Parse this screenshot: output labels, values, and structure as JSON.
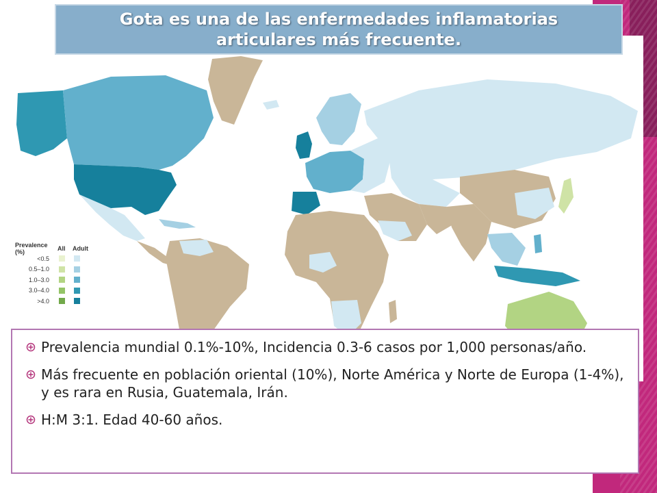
{
  "slide": {
    "title": "Gota es una de las enfermedades inflamatorias articulares más frecuente."
  },
  "legend": {
    "title": "Prevalence (%)",
    "col_all": "All",
    "col_adult": "Adult",
    "rows": [
      {
        "label": "<0.5",
        "all_color": "#e9f2cf",
        "adult_color": "#d2e8f2"
      },
      {
        "label": "0.5–1.0",
        "all_color": "#cfe3a6",
        "adult_color": "#a5d0e3"
      },
      {
        "label": "1.0–3.0",
        "all_color": "#b2d483",
        "adult_color": "#62b0cc"
      },
      {
        "label": "3.0–4.0",
        "all_color": "#94c467",
        "adult_color": "#2f98b2"
      },
      {
        "label": ">4.0",
        "all_color": "#72a94a",
        "adult_color": "#16809c"
      }
    ]
  },
  "bullets": [
    {
      "text": "Prevalencia mundial 0.1%-10%, Incidencia 0.3-6 casos por 1,000 personas/año."
    },
    {
      "text": "Más frecuente en población oriental (10%), Norte América y Norte de Europa (1-4%), y es rara en Rusia, Guatemala, Irán."
    },
    {
      "text": "H:M 3:1. Edad 40-60 años."
    }
  ],
  "colors": {
    "accent_strip": "#c1287c",
    "title_bg": "#87aecb",
    "content_border": "#b276b2",
    "land_no_data": "#c9b698",
    "ocean": "#ffffff"
  },
  "icons": {
    "bullet": "circled-plus-icon"
  }
}
